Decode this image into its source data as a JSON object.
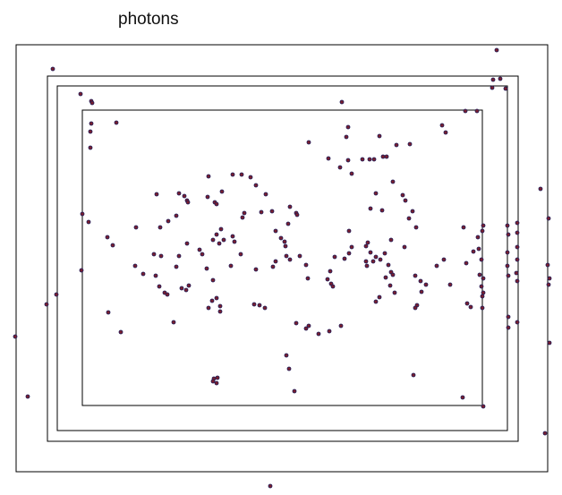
{
  "title": "photons",
  "colors": {
    "frame": "#000000",
    "photon_fill": "#7a1f2e",
    "photon_stroke": "#1c1c5a",
    "background": "#ffffff"
  }
}
